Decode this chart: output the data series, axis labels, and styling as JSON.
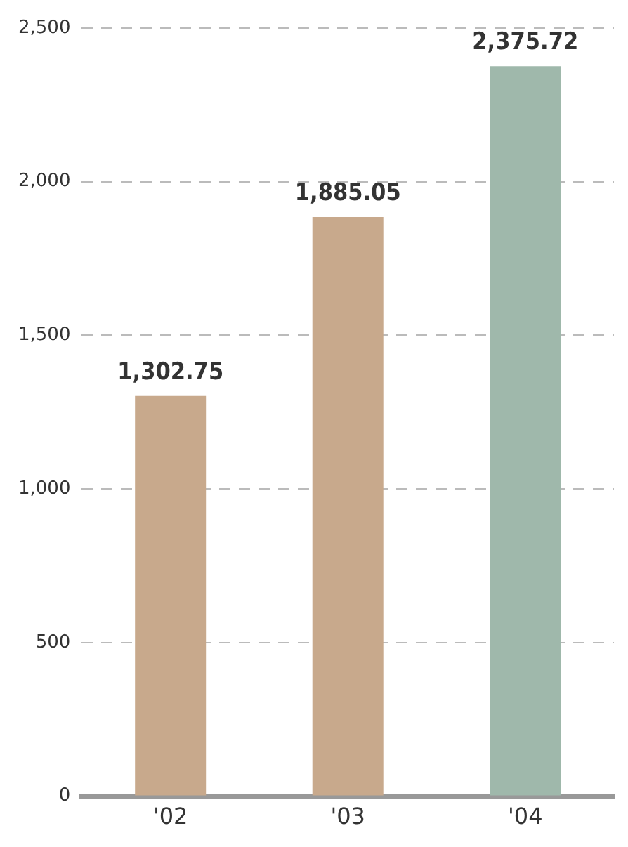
{
  "chart_data": {
    "type": "bar",
    "categories": [
      "'02",
      "'03",
      "'04"
    ],
    "values": [
      1302.75,
      1885.05,
      2375.72
    ],
    "colors": [
      "#c8a98c",
      "#c8a98c",
      "#9fb8ab"
    ],
    "value_labels": [
      "1,302.75",
      "1,885.05",
      "2,375.72"
    ],
    "ylim": [
      0,
      2500
    ],
    "yticks": [
      0,
      500,
      {
        "value": 1000,
        "label": "1,000"
      },
      {
        "value": 1500,
        "label": "1,500"
      },
      {
        "value": 2000,
        "label": "2,000"
      },
      {
        "value": 2500,
        "label": "2,500"
      }
    ],
    "grid": "y",
    "legend": false
  }
}
